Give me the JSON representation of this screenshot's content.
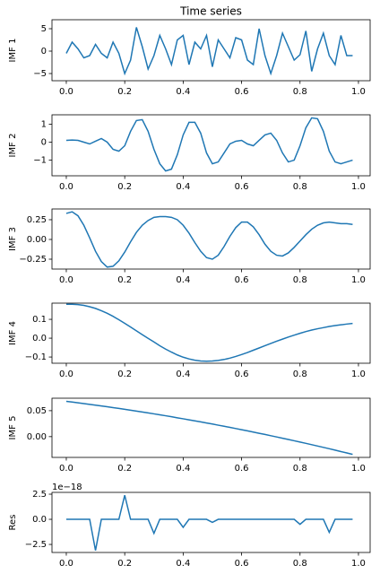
{
  "chart_data": [
    {
      "type": "line",
      "title": "Time series",
      "ylabel": "IMF 1",
      "color": "#1f77b4",
      "x": [
        0,
        0.02,
        0.04,
        0.06,
        0.08,
        0.1,
        0.12,
        0.14,
        0.16,
        0.18,
        0.2,
        0.22,
        0.24,
        0.26,
        0.28,
        0.3,
        0.32,
        0.34,
        0.36,
        0.38,
        0.4,
        0.42,
        0.44,
        0.46,
        0.48,
        0.5,
        0.52,
        0.54,
        0.56,
        0.58,
        0.6,
        0.62,
        0.64,
        0.66,
        0.68,
        0.7,
        0.72,
        0.74,
        0.76,
        0.78,
        0.8,
        0.82,
        0.84,
        0.86,
        0.88,
        0.9,
        0.92,
        0.94,
        0.96,
        0.98
      ],
      "values": [
        -0.5,
        2,
        0.5,
        -1.5,
        -1,
        1.5,
        -0.5,
        -1.5,
        2,
        -0.5,
        -5,
        -2,
        5.3,
        1,
        -4,
        -1,
        3.5,
        0.5,
        -3,
        2.5,
        3.5,
        -3,
        2,
        0.5,
        3.5,
        -3.5,
        2.5,
        0.5,
        -1.5,
        3,
        2.5,
        -2,
        -3,
        5,
        -1,
        -5,
        -1,
        4,
        1,
        -2,
        -0.8,
        4.5,
        -4.5,
        0.5,
        4,
        -1,
        -3,
        3.5,
        -1,
        -1
      ],
      "xlim": [
        -0.049,
        1.04
      ],
      "ylim": [
        -6.6,
        7
      ],
      "xticks": [
        {
          "value": 0,
          "label": "0.0"
        },
        {
          "value": 0.2,
          "label": "0.2"
        },
        {
          "value": 0.4,
          "label": "0.4"
        },
        {
          "value": 0.6,
          "label": "0.6"
        },
        {
          "value": 0.8,
          "label": "0.8"
        },
        {
          "value": 1,
          "label": "1.0"
        }
      ],
      "yticks": [
        {
          "value": -5,
          "label": "−5"
        },
        0,
        5
      ]
    },
    {
      "type": "line",
      "ylabel": "IMF 2",
      "color": "#1f77b4",
      "x": [
        0,
        0.02,
        0.04,
        0.06,
        0.08,
        0.1,
        0.12,
        0.14,
        0.16,
        0.18,
        0.2,
        0.22,
        0.24,
        0.26,
        0.28,
        0.3,
        0.32,
        0.34,
        0.36,
        0.38,
        0.4,
        0.42,
        0.44,
        0.46,
        0.48,
        0.5,
        0.52,
        0.54,
        0.56,
        0.58,
        0.6,
        0.62,
        0.64,
        0.66,
        0.68,
        0.7,
        0.72,
        0.74,
        0.76,
        0.78,
        0.8,
        0.82,
        0.84,
        0.86,
        0.88,
        0.9,
        0.92,
        0.94,
        0.96,
        0.98
      ],
      "values": [
        0.1,
        0.12,
        0.1,
        0,
        -0.1,
        0.05,
        0.2,
        0,
        -0.4,
        -0.5,
        -0.2,
        0.6,
        1.2,
        1.25,
        0.6,
        -0.4,
        -1.2,
        -1.6,
        -1.5,
        -0.7,
        0.4,
        1.1,
        1.1,
        0.5,
        -0.6,
        -1.2,
        -1.1,
        -0.6,
        -0.1,
        0.05,
        0.1,
        -0.1,
        -0.2,
        0.1,
        0.4,
        0.5,
        0.1,
        -0.6,
        -1.1,
        -1.0,
        -0.2,
        0.8,
        1.35,
        1.3,
        0.6,
        -0.5,
        -1.1,
        -1.2,
        -1.1,
        -1.0
      ],
      "xlim": [
        -0.049,
        1.04
      ],
      "ylim": [
        -1.87,
        1.52
      ],
      "xticks": [
        {
          "value": 0,
          "label": "0.0"
        },
        {
          "value": 0.2,
          "label": "0.2"
        },
        {
          "value": 0.4,
          "label": "0.4"
        },
        {
          "value": 0.6,
          "label": "0.6"
        },
        {
          "value": 0.8,
          "label": "0.8"
        },
        {
          "value": 1,
          "label": "1.0"
        }
      ],
      "yticks": [
        {
          "value": -1,
          "label": "−1"
        },
        0,
        1
      ]
    },
    {
      "type": "line",
      "ylabel": "IMF 3",
      "color": "#1f77b4",
      "x": [
        0,
        0.02,
        0.04,
        0.06,
        0.08,
        0.1,
        0.12,
        0.14,
        0.16,
        0.18,
        0.2,
        0.22,
        0.24,
        0.26,
        0.28,
        0.3,
        0.32,
        0.34,
        0.36,
        0.38,
        0.4,
        0.42,
        0.44,
        0.46,
        0.48,
        0.5,
        0.52,
        0.54,
        0.56,
        0.58,
        0.6,
        0.62,
        0.64,
        0.66,
        0.68,
        0.7,
        0.72,
        0.74,
        0.76,
        0.78,
        0.8,
        0.82,
        0.84,
        0.86,
        0.88,
        0.9,
        0.92,
        0.94,
        0.96,
        0.98
      ],
      "values": [
        0.33,
        0.35,
        0.3,
        0.18,
        0.02,
        -0.15,
        -0.28,
        -0.35,
        -0.34,
        -0.27,
        -0.16,
        -0.03,
        0.09,
        0.18,
        0.24,
        0.28,
        0.29,
        0.29,
        0.28,
        0.25,
        0.18,
        0.08,
        -0.04,
        -0.15,
        -0.23,
        -0.25,
        -0.2,
        -0.09,
        0.04,
        0.15,
        0.22,
        0.22,
        0.16,
        0.06,
        -0.06,
        -0.15,
        -0.2,
        -0.21,
        -0.17,
        -0.1,
        -0.02,
        0.06,
        0.13,
        0.18,
        0.21,
        0.22,
        0.21,
        0.2,
        0.2,
        0.19
      ],
      "xlim": [
        -0.049,
        1.04
      ],
      "ylim": [
        -0.375,
        0.386
      ],
      "xticks": [
        {
          "value": 0,
          "label": "0.0"
        },
        {
          "value": 0.2,
          "label": "0.2"
        },
        {
          "value": 0.4,
          "label": "0.4"
        },
        {
          "value": 0.6,
          "label": "0.6"
        },
        {
          "value": 0.8,
          "label": "0.8"
        },
        {
          "value": 1,
          "label": "1.0"
        }
      ],
      "yticks": [
        {
          "value": -0.25,
          "label": "−0.25"
        },
        {
          "value": 0,
          "label": "0.00"
        },
        0.25
      ]
    },
    {
      "type": "line",
      "ylabel": "IMF 4",
      "color": "#1f77b4",
      "x": [
        0,
        0.02,
        0.04,
        0.06,
        0.08,
        0.1,
        0.12,
        0.14,
        0.16,
        0.18,
        0.2,
        0.22,
        0.24,
        0.26,
        0.28,
        0.3,
        0.32,
        0.34,
        0.36,
        0.38,
        0.4,
        0.42,
        0.44,
        0.46,
        0.48,
        0.5,
        0.52,
        0.54,
        0.56,
        0.58,
        0.6,
        0.62,
        0.64,
        0.66,
        0.68,
        0.7,
        0.72,
        0.74,
        0.76,
        0.78,
        0.8,
        0.82,
        0.84,
        0.86,
        0.88,
        0.9,
        0.92,
        0.94,
        0.96,
        0.98
      ],
      "values": [
        0.18,
        0.18,
        0.178,
        0.174,
        0.167,
        0.158,
        0.146,
        0.132,
        0.116,
        0.098,
        0.079,
        0.059,
        0.039,
        0.019,
        -0.001,
        -0.02,
        -0.04,
        -0.058,
        -0.074,
        -0.089,
        -0.101,
        -0.11,
        -0.117,
        -0.121,
        -0.122,
        -0.121,
        -0.118,
        -0.113,
        -0.106,
        -0.097,
        -0.087,
        -0.076,
        -0.064,
        -0.052,
        -0.04,
        -0.028,
        -0.016,
        -0.005,
        0.006,
        0.016,
        0.026,
        0.035,
        0.043,
        0.05,
        0.056,
        0.062,
        0.067,
        0.071,
        0.075,
        0.078
      ],
      "xlim": [
        -0.049,
        1.04
      ],
      "ylim": [
        -0.133,
        0.186
      ],
      "xticks": [
        {
          "value": 0,
          "label": "0.0"
        },
        {
          "value": 0.2,
          "label": "0.2"
        },
        {
          "value": 0.4,
          "label": "0.4"
        },
        {
          "value": 0.6,
          "label": "0.6"
        },
        {
          "value": 0.8,
          "label": "0.8"
        },
        {
          "value": 1,
          "label": "1.0"
        }
      ],
      "yticks": [
        {
          "value": -0.1,
          "label": "−0.1"
        },
        {
          "value": 0,
          "label": "0.0"
        },
        0.1
      ]
    },
    {
      "type": "line",
      "ylabel": "IMF 5",
      "color": "#1f77b4",
      "x": [
        0,
        0.02,
        0.04,
        0.06,
        0.08,
        0.1,
        0.12,
        0.14,
        0.16,
        0.18,
        0.2,
        0.22,
        0.24,
        0.26,
        0.28,
        0.3,
        0.32,
        0.34,
        0.36,
        0.38,
        0.4,
        0.42,
        0.44,
        0.46,
        0.48,
        0.5,
        0.52,
        0.54,
        0.56,
        0.58,
        0.6,
        0.62,
        0.64,
        0.66,
        0.68,
        0.7,
        0.72,
        0.74,
        0.76,
        0.78,
        0.8,
        0.82,
        0.84,
        0.86,
        0.88,
        0.9,
        0.92,
        0.94,
        0.96,
        0.98
      ],
      "values": [
        0.068,
        0.0666,
        0.0651,
        0.0637,
        0.0622,
        0.0607,
        0.0591,
        0.0575,
        0.0559,
        0.0543,
        0.0526,
        0.0509,
        0.0492,
        0.0474,
        0.0457,
        0.0439,
        0.042,
        0.0402,
        0.0383,
        0.0363,
        0.0344,
        0.0324,
        0.0304,
        0.0284,
        0.0263,
        0.0243,
        0.0221,
        0.02,
        0.0178,
        0.0156,
        0.0134,
        0.0111,
        0.0088,
        0.0065,
        0.0042,
        0.0018,
        -0.0006,
        -0.003,
        -0.0054,
        -0.0079,
        -0.0104,
        -0.0129,
        -0.0155,
        -0.0181,
        -0.0207,
        -0.0233,
        -0.026,
        -0.0287,
        -0.0314,
        -0.0342
      ],
      "xlim": [
        -0.049,
        1.04
      ],
      "ylim": [
        -0.04,
        0.074
      ],
      "xticks": [
        {
          "value": 0,
          "label": "0.0"
        },
        {
          "value": 0.2,
          "label": "0.2"
        },
        {
          "value": 0.4,
          "label": "0.4"
        },
        {
          "value": 0.6,
          "label": "0.6"
        },
        {
          "value": 0.8,
          "label": "0.8"
        },
        {
          "value": 1,
          "label": "1.0"
        }
      ],
      "yticks": [
        {
          "value": 0,
          "label": "0.00"
        },
        0.05
      ]
    },
    {
      "type": "line",
      "ylabel": "Res",
      "offset_text": "1e−18",
      "color": "#1f77b4",
      "x": [
        0,
        0.02,
        0.04,
        0.06,
        0.08,
        0.1,
        0.12,
        0.14,
        0.16,
        0.18,
        0.2,
        0.22,
        0.24,
        0.26,
        0.28,
        0.3,
        0.32,
        0.34,
        0.36,
        0.38,
        0.4,
        0.42,
        0.44,
        0.46,
        0.48,
        0.5,
        0.52,
        0.54,
        0.56,
        0.58,
        0.6,
        0.62,
        0.64,
        0.66,
        0.68,
        0.7,
        0.72,
        0.74,
        0.76,
        0.78,
        0.8,
        0.82,
        0.84,
        0.86,
        0.88,
        0.9,
        0.92,
        0.94,
        0.96,
        0.98
      ],
      "values": [
        0,
        0,
        0,
        0,
        0,
        -3.1,
        0,
        0,
        0,
        0,
        2.4,
        0,
        0,
        0,
        0,
        -1.4,
        0,
        0,
        0,
        0,
        -0.8,
        0,
        0,
        0,
        0,
        -0.3,
        0,
        0,
        0,
        0,
        0,
        0,
        0,
        0,
        0,
        0,
        0,
        0,
        0,
        0,
        -0.5,
        0,
        0,
        0,
        0,
        -1.3,
        0,
        0,
        0,
        0
      ],
      "xlim": [
        -0.049,
        1.04
      ],
      "ylim": [
        -3.3,
        2.68
      ],
      "xticks": [
        {
          "value": 0,
          "label": "0.0"
        },
        {
          "value": 0.2,
          "label": "0.2"
        },
        {
          "value": 0.4,
          "label": "0.4"
        },
        {
          "value": 0.6,
          "label": "0.6"
        },
        {
          "value": 0.8,
          "label": "0.8"
        },
        {
          "value": 1,
          "label": "1.0"
        }
      ],
      "yticks": [
        {
          "value": -2.5,
          "label": "−2.5"
        },
        {
          "value": 0,
          "label": "0.0"
        },
        2.5
      ]
    }
  ]
}
